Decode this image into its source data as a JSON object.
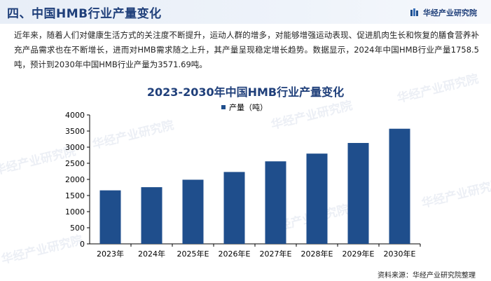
{
  "header": {
    "title": "四、中国HMB行业产量变化",
    "brand": "华经产业研究院"
  },
  "intro": "近年来，随着人们对健康生活方式的关注度不断提升，运动人群的增多，对能够增强运动表现、促进肌肉生长和恢复的膳食营养补充产品需求也在不断增长，进而对HMB需求随之上升，其产量呈现稳定增长趋势。数据显示，2024年中国HMB行业产量1758.5吨，预计到2030年中国HMB行业产量为3571.69吨。",
  "watermark": "华经产业研究院",
  "source": "资料来源：华经产业研究院整理",
  "colors": {
    "bar": "#1f4e8c",
    "title": "#1f3f7a"
  },
  "chart_data": {
    "type": "bar",
    "title": "2023-2030年中国HMB行业产量变化",
    "categories": [
      "2023年",
      "2024年",
      "2025年E",
      "2026年E",
      "2027年E",
      "2028年E",
      "2029年E",
      "2030年E"
    ],
    "series": [
      {
        "name": "产量（吨）",
        "values": [
          1660,
          1758.5,
          1990,
          2230,
          2560,
          2800,
          3130,
          3571.69
        ]
      }
    ],
    "ylim": [
      0,
      4000
    ],
    "yticks": [
      0,
      500,
      1000,
      1500,
      2000,
      2500,
      3000,
      3500,
      4000
    ],
    "grid": false,
    "legend_position": "top-center"
  }
}
